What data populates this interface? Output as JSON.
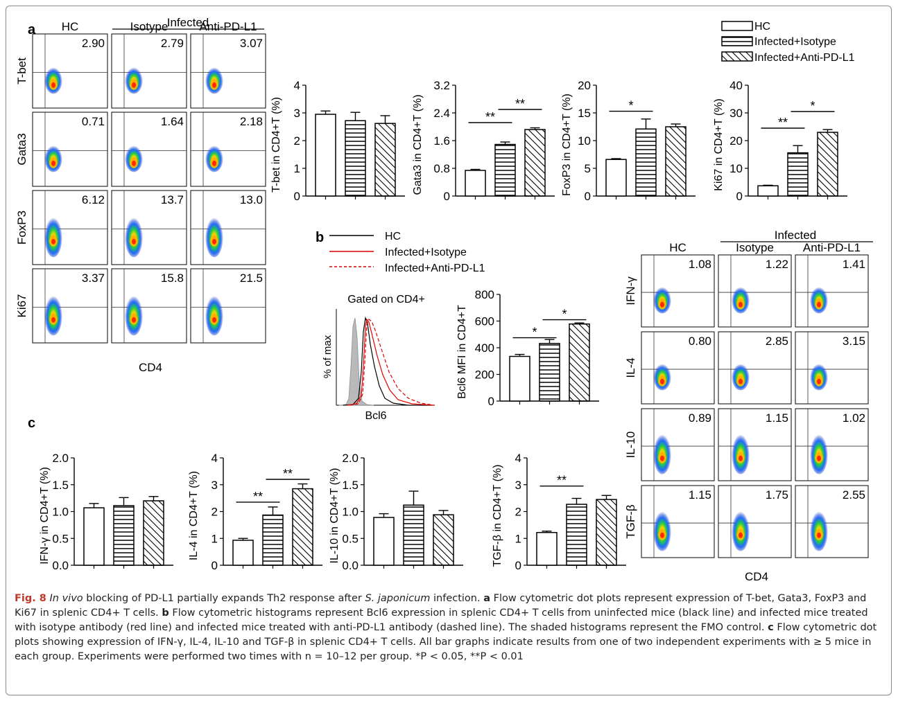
{
  "panels": {
    "a": "a",
    "b": "b",
    "c": "c"
  },
  "legend": {
    "items": [
      "HC",
      "Infected+Isotype",
      "Infected+Anti-PD-L1"
    ]
  },
  "flow_a": {
    "header_infected": "Infected",
    "columns": [
      "HC",
      "Isotype",
      "Anti-PD-L1"
    ],
    "rows": [
      {
        "label": "T-bet",
        "values": [
          "2.90",
          "2.79",
          "3.07"
        ]
      },
      {
        "label": "Gata3",
        "values": [
          "0.71",
          "1.64",
          "2.18"
        ]
      },
      {
        "label": "FoxP3",
        "values": [
          "6.12",
          "13.7",
          "13.0"
        ]
      },
      {
        "label": "Ki67",
        "values": [
          "3.37",
          "15.8",
          "21.5"
        ]
      }
    ],
    "xlabel": "CD4"
  },
  "flow_c": {
    "header_infected": "Infected",
    "columns": [
      "HC",
      "Isotype",
      "Anti-PD-L1"
    ],
    "rows": [
      {
        "label": "IFN-γ",
        "values": [
          "1.08",
          "1.22",
          "1.41"
        ]
      },
      {
        "label": "IL-4",
        "values": [
          "0.80",
          "2.85",
          "3.15"
        ]
      },
      {
        "label": "IL-10",
        "values": [
          "0.89",
          "1.15",
          "1.02"
        ]
      },
      {
        "label": "TGF-β",
        "values": [
          "1.15",
          "1.75",
          "2.55"
        ]
      }
    ],
    "xlabel": "CD4"
  },
  "histogram_b": {
    "legend": [
      "HC",
      "Infected+Isotype",
      "Infected+Anti-PD-L1"
    ],
    "title": "Gated on CD4+",
    "ylabel": "% of max",
    "xlabel": "Bcl6"
  },
  "chart_data": [
    {
      "type": "bar",
      "id": "tbet",
      "categories": [
        "HC",
        "Infected+Isotype",
        "Infected+Anti-PD-L1"
      ],
      "values": [
        2.95,
        2.72,
        2.62
      ],
      "errors": [
        0.12,
        0.3,
        0.28
      ],
      "ylabel": "T-bet in CD4+T (%)",
      "ylim": [
        0,
        4
      ],
      "ticks": [
        "0",
        "1",
        "2",
        "3",
        "4"
      ],
      "sig": []
    },
    {
      "type": "bar",
      "id": "gata3",
      "categories": [
        "HC",
        "Infected+Isotype",
        "Infected+Anti-PD-L1"
      ],
      "values": [
        0.74,
        1.49,
        1.92
      ],
      "errors": [
        0.03,
        0.07,
        0.05
      ],
      "ylabel": "Gata3 in CD4+T (%)",
      "ylim": [
        0,
        3.2
      ],
      "ticks": [
        "0",
        "0.8",
        "1.6",
        "2.4",
        "3.2"
      ],
      "sig": [
        {
          "from": 0,
          "to": 1,
          "label": "**",
          "y": 2.12
        },
        {
          "from": 1,
          "to": 2,
          "label": "**",
          "y": 2.5
        }
      ]
    },
    {
      "type": "bar",
      "id": "foxp3",
      "categories": [
        "HC",
        "Infected+Isotype",
        "Infected+Anti-PD-L1"
      ],
      "values": [
        6.6,
        12.1,
        12.5
      ],
      "errors": [
        0.15,
        1.8,
        0.5
      ],
      "ylabel": "FoxP3 in CD4+T (%)",
      "ylim": [
        0,
        20
      ],
      "ticks": [
        "0",
        "5",
        "10",
        "15",
        "20"
      ],
      "sig": [
        {
          "from": 0,
          "to": 1,
          "label": "*",
          "y": 15.3
        }
      ]
    },
    {
      "type": "bar",
      "id": "ki67",
      "categories": [
        "HC",
        "Infected+Isotype",
        "Infected+Anti-PD-L1"
      ],
      "values": [
        3.7,
        15.6,
        23.0
      ],
      "errors": [
        0.2,
        2.6,
        1.0
      ],
      "ylabel": "Ki67 in CD4+T (%)",
      "ylim": [
        0,
        40
      ],
      "ticks": [
        "0",
        "10",
        "20",
        "30",
        "40"
      ],
      "sig": [
        {
          "from": 0,
          "to": 1,
          "label": "**",
          "y": 24.5
        },
        {
          "from": 1,
          "to": 2,
          "label": "*",
          "y": 30.5
        }
      ]
    },
    {
      "type": "bar",
      "id": "bcl6",
      "categories": [
        "HC",
        "Infected+Isotype",
        "Infected+Anti-PD-L1"
      ],
      "values": [
        335,
        432,
        578
      ],
      "errors": [
        15,
        30,
        8
      ],
      "ylabel": "Bcl6 MFI in CD4+T",
      "ylim": [
        0,
        800
      ],
      "ticks": [
        "0",
        "200",
        "400",
        "600",
        "800"
      ],
      "sig": [
        {
          "from": 0,
          "to": 1,
          "label": "*",
          "y": 475
        },
        {
          "from": 1,
          "to": 2,
          "label": "*",
          "y": 610
        }
      ]
    },
    {
      "type": "bar",
      "id": "ifng",
      "categories": [
        "HC",
        "Infected+Isotype",
        "Infected+Anti-PD-L1"
      ],
      "values": [
        1.07,
        1.11,
        1.2
      ],
      "errors": [
        0.08,
        0.15,
        0.08
      ],
      "ylabel": "IFN-γ in CD4+T (%)",
      "ylim": [
        0,
        2.0
      ],
      "ticks": [
        "0.0",
        "0.5",
        "1.0",
        "1.5",
        "2.0"
      ],
      "sig": []
    },
    {
      "type": "bar",
      "id": "il4",
      "categories": [
        "HC",
        "Infected+Isotype",
        "Infected+Anti-PD-L1"
      ],
      "values": [
        0.93,
        1.87,
        2.85
      ],
      "errors": [
        0.07,
        0.3,
        0.18
      ],
      "ylabel": "IL-4 in CD4+T (%)",
      "ylim": [
        0,
        4
      ],
      "ticks": [
        "0",
        "1",
        "2",
        "3",
        "4"
      ],
      "sig": [
        {
          "from": 0,
          "to": 1,
          "label": "**",
          "y": 2.35
        },
        {
          "from": 1,
          "to": 2,
          "label": "**",
          "y": 3.2
        }
      ]
    },
    {
      "type": "bar",
      "id": "il10",
      "categories": [
        "HC",
        "Infected+Isotype",
        "Infected+Anti-PD-L1"
      ],
      "values": [
        0.89,
        1.12,
        0.94
      ],
      "errors": [
        0.07,
        0.26,
        0.08
      ],
      "ylabel": "IL-10 in CD4+T (%)",
      "ylim": [
        0,
        2.0
      ],
      "ticks": [
        "0.0",
        "0.5",
        "1.0",
        "1.5",
        "2.0"
      ],
      "sig": []
    },
    {
      "type": "bar",
      "id": "tgfb",
      "categories": [
        "HC",
        "Infected+Isotype",
        "Infected+Anti-PD-L1"
      ],
      "values": [
        1.22,
        2.27,
        2.45
      ],
      "errors": [
        0.05,
        0.22,
        0.15
      ],
      "ylabel": "TGF-β in CD4+T (%)",
      "ylim": [
        0,
        4
      ],
      "ticks": [
        "0",
        "1",
        "2",
        "3",
        "4"
      ],
      "sig": [
        {
          "from": 0,
          "to": 1,
          "label": "**",
          "y": 2.95
        }
      ]
    }
  ],
  "caption": {
    "fig_label": "Fig. 8",
    "title_italic": "In vivo",
    "title_rest": " blocking of PD-L1 partially expands Th2 response after ",
    "species": "S. japonicum",
    "title_end": " infection.",
    "a_label": "a",
    "a_text": " Flow cytometric dot plots represent expression of T-bet, Gata3, FoxP3 and Ki67 in splenic CD4+ T cells.",
    "b_label": "b",
    "b_text": " Flow cytometric histograms represent Bcl6 expression in splenic CD4+ T cells from uninfected mice (black line) and infected mice treated with isotype antibody (red line) and infected mice treated with anti-PD-L1 antibody (dashed line). The shaded histograms represent the FMO control.",
    "c_label": "c",
    "c_text": " Flow cytometric dot plots showing expression of IFN-γ, IL-4, IL-10 and TGF-β in splenic CD4+ T cells. All bar graphs indicate results from one of two independent experiments with ≥ 5 mice in each group. Experiments were performed two times with n = 10–12 per group. *P < 0.05, **P < 0.01"
  }
}
